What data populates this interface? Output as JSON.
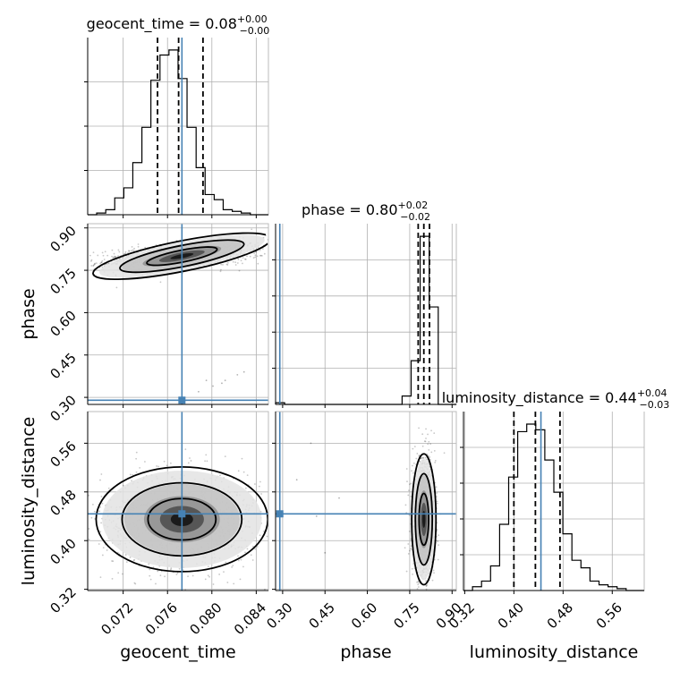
{
  "chart_data": {
    "type": "corner",
    "parameters": [
      {
        "name": "geocent_time",
        "axis_label": "geocent_time",
        "title": "geocent_time = 0.08",
        "title_sup": "+0.00",
        "title_sub": "−0.00",
        "range": [
          0.0688,
          0.0851
        ],
        "ticks": [
          0.072,
          0.076,
          0.08,
          0.084
        ],
        "tick_labels": [
          "0.072",
          "0.076",
          "0.080",
          "0.084"
        ],
        "truth": 0.0773,
        "quantiles": [
          0.0751,
          0.077,
          0.0792
        ],
        "hist_edges": [
          0.0688,
          0.06961,
          0.07043,
          0.07124,
          0.07206,
          0.07287,
          0.07369,
          0.0745,
          0.07532,
          0.07613,
          0.07695,
          0.07776,
          0.07858,
          0.07939,
          0.08021,
          0.08102,
          0.08184,
          0.08265,
          0.08347,
          0.08428,
          0.0851
        ],
        "hist_counts": [
          0.0,
          0.01,
          0.03,
          0.1,
          0.16,
          0.31,
          0.52,
          0.8,
          0.95,
          0.98,
          0.81,
          0.52,
          0.28,
          0.12,
          0.09,
          0.03,
          0.02,
          0.01,
          0.0,
          0.0
        ]
      },
      {
        "name": "phase",
        "axis_label": "phase",
        "title": "phase = 0.80",
        "title_sup": "+0.02",
        "title_sub": "−0.02",
        "range": [
          0.275,
          0.915
        ],
        "ticks": [
          0.3,
          0.45,
          0.6,
          0.75,
          0.9
        ],
        "tick_labels": [
          "0.30",
          "0.45",
          "0.60",
          "0.75",
          "0.90"
        ],
        "truth": 0.29,
        "quantiles": [
          0.78,
          0.8,
          0.82
        ],
        "hist_edges": [
          0.275,
          0.307,
          0.339,
          0.371,
          0.403,
          0.435,
          0.467,
          0.499,
          0.531,
          0.563,
          0.595,
          0.627,
          0.659,
          0.691,
          0.723,
          0.755,
          0.787,
          0.819,
          0.851,
          0.883,
          0.915
        ],
        "hist_counts": [
          0.01,
          0.0,
          0.0,
          0.0,
          0.0,
          0.0,
          0.0,
          0.0,
          0.0,
          0.0,
          0.0,
          0.0,
          0.0,
          0.0,
          0.05,
          0.26,
          1.0,
          0.58,
          0.0,
          0.0
        ]
      },
      {
        "name": "luminosity_distance",
        "axis_label": "luminosity_distance",
        "title": "luminosity_distance = 0.44",
        "title_sup": "+0.04",
        "title_sub": "−0.03",
        "range": [
          0.318,
          0.612
        ],
        "ticks": [
          0.32,
          0.4,
          0.48,
          0.56
        ],
        "tick_labels": [
          "0.32",
          "0.40",
          "0.48",
          "0.56"
        ],
        "truth": 0.444,
        "quantiles": [
          0.4,
          0.435,
          0.475
        ],
        "hist_edges": [
          0.318,
          0.3327,
          0.3474,
          0.3621,
          0.3768,
          0.3915,
          0.4062,
          0.4209,
          0.4356,
          0.4503,
          0.465,
          0.4797,
          0.4944,
          0.5091,
          0.5238,
          0.5385,
          0.5532,
          0.5679,
          0.5826,
          0.5973,
          0.612
        ],
        "hist_counts": [
          0.0,
          0.02,
          0.05,
          0.13,
          0.35,
          0.6,
          0.84,
          0.88,
          0.85,
          0.69,
          0.52,
          0.3,
          0.16,
          0.12,
          0.05,
          0.03,
          0.02,
          0.01,
          0.0,
          0.0
        ]
      }
    ],
    "pairs": [
      {
        "x": "geocent_time",
        "y": "phase",
        "peak": [
          0.0773,
          0.8
        ],
        "spread": [
          0.0038,
          0.025
        ],
        "correlation": 0.45,
        "outliers": [
          [
            0.0788,
            0.32
          ],
          [
            0.0801,
            0.34
          ],
          [
            0.0812,
            0.36
          ],
          [
            0.0823,
            0.38
          ],
          [
            0.0795,
            0.36
          ],
          [
            0.0829,
            0.39
          ],
          [
            0.0809,
            0.35
          ]
        ]
      },
      {
        "x": "geocent_time",
        "y": "luminosity_distance",
        "peak": [
          0.0773,
          0.435
        ],
        "spread": [
          0.0036,
          0.04
        ],
        "correlation": 0.0,
        "outliers": []
      },
      {
        "x": "phase",
        "y": "luminosity_distance",
        "peak": [
          0.8,
          0.435
        ],
        "spread": [
          0.02,
          0.05
        ],
        "correlation": 0.0,
        "outliers": [
          [
            0.35,
            0.5
          ],
          [
            0.4,
            0.56
          ],
          [
            0.45,
            0.38
          ],
          [
            0.5,
            0.47
          ],
          [
            0.42,
            0.44
          ]
        ]
      }
    ],
    "contour_levels": [
      "inner",
      "middle",
      "outer"
    ],
    "grid": true,
    "legend": "none"
  },
  "colors": {
    "truth": "#4682b4",
    "lines": "#000000",
    "grid": "#b0b0b0",
    "density": "#000000"
  }
}
